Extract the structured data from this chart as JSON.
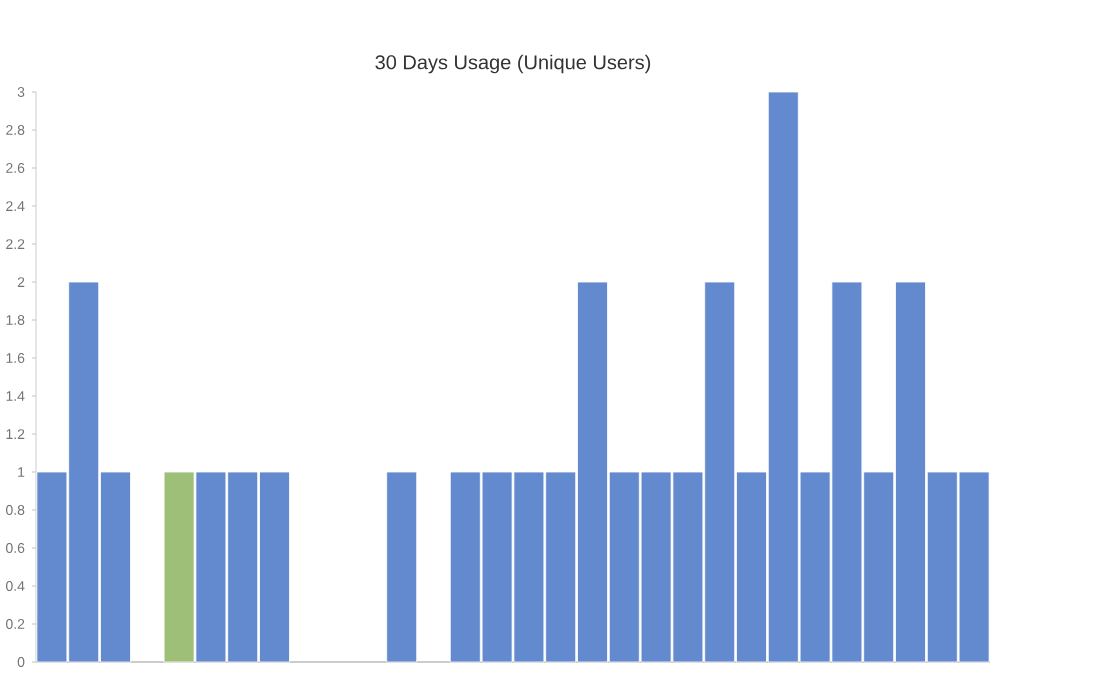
{
  "chart_data": {
    "type": "bar",
    "title": "30 Days Usage (Unique Users)",
    "stacked": true,
    "categories": [
      null,
      null,
      null,
      null,
      null,
      null,
      null,
      null,
      null,
      null,
      null,
      null,
      null,
      null,
      null,
      null,
      null,
      null,
      null,
      null,
      null,
      null,
      null,
      null,
      null,
      null,
      null,
      null,
      null,
      null
    ],
    "series": [
      {
        "color": "#9dbf78",
        "values": [
          0,
          0,
          0,
          0,
          1,
          0,
          0,
          0,
          0,
          0,
          0,
          0,
          0,
          0,
          0,
          0,
          0,
          0,
          0,
          0,
          0,
          0,
          0,
          0,
          0,
          0,
          0,
          0,
          0,
          0
        ]
      },
      {
        "color": "#6389cf",
        "values": [
          1,
          2,
          1,
          0,
          0,
          1,
          1,
          1,
          0,
          0,
          0,
          1,
          0,
          1,
          1,
          1,
          1,
          2,
          1,
          1,
          1,
          2,
          1,
          3,
          1,
          2,
          1,
          2,
          1,
          1
        ]
      }
    ],
    "ylim": [
      0,
      3
    ],
    "yticks": [
      0,
      0.2,
      0.4,
      0.6,
      0.8,
      1,
      1.2,
      1.4,
      1.6,
      1.8,
      2,
      2.2,
      2.4,
      2.6,
      2.8,
      3
    ]
  }
}
